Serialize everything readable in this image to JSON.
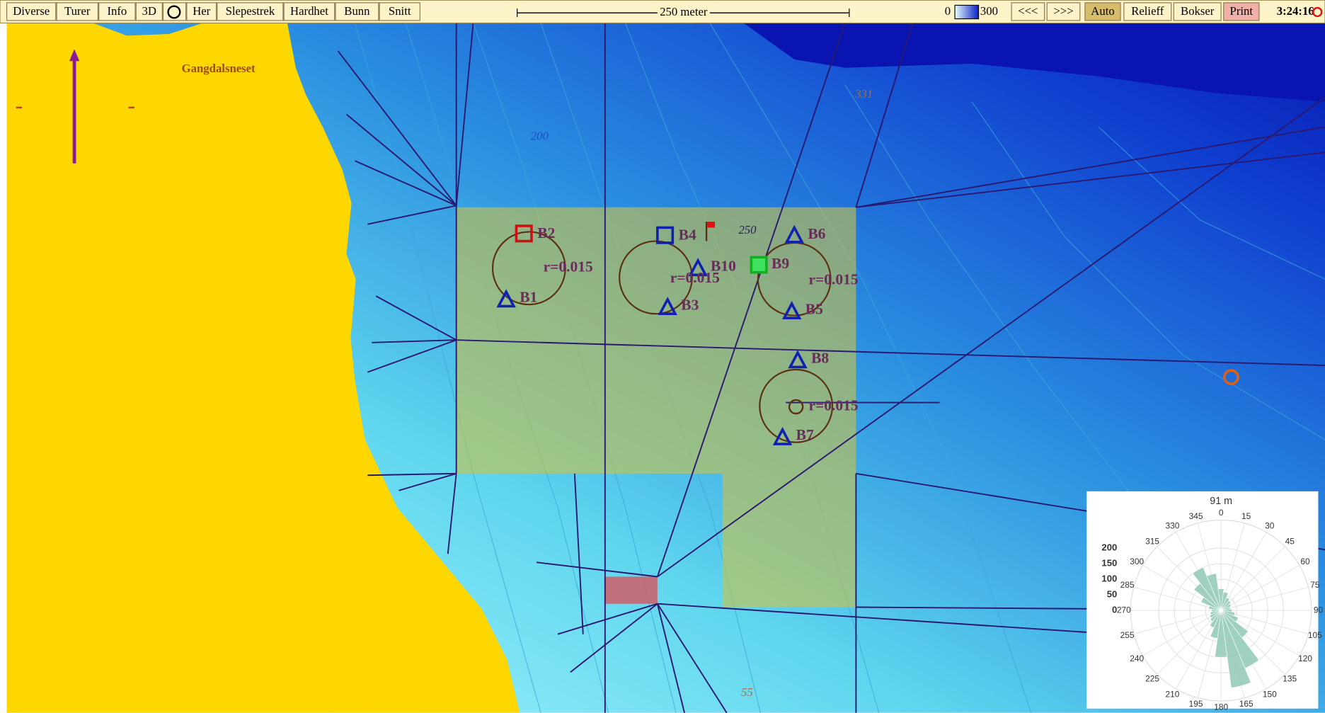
{
  "toolbar": {
    "buttons": [
      "Diverse",
      "Turer",
      "Info",
      "3D",
      "Her",
      "Slepestrek",
      "Hardhet",
      "Bunn",
      "Snitt"
    ],
    "scale_label": "250 meter",
    "depth_min": 0,
    "depth_max": 300,
    "nav": [
      "<<<",
      ">>>"
    ],
    "modes": [
      "Auto",
      "Relieff",
      "Bokser",
      "Print"
    ],
    "clock": "3:24:16"
  },
  "map": {
    "place_labels": [
      "Gangdalsneset"
    ],
    "depth_labels": [
      "200",
      "331",
      "250",
      "55"
    ],
    "stations": [
      "B1",
      "B2",
      "B3",
      "B4",
      "B5",
      "B6",
      "B7",
      "B8",
      "B9",
      "B10"
    ],
    "radius_labels": [
      "r=0.015",
      "r=0.015",
      "r=0.015",
      "r=0.015"
    ]
  },
  "chart_data": {
    "type": "polar-bar",
    "title": "91 m",
    "categories": [
      0,
      15,
      30,
      45,
      60,
      75,
      90,
      105,
      120,
      135,
      150,
      165,
      180,
      195,
      210,
      225,
      240,
      255,
      270,
      285,
      300,
      315,
      330,
      345
    ],
    "values": [
      70,
      60,
      45,
      40,
      35,
      30,
      35,
      45,
      60,
      110,
      200,
      250,
      150,
      90,
      60,
      45,
      40,
      35,
      30,
      40,
      70,
      110,
      150,
      120
    ],
    "rlim": [
      0,
      290
    ],
    "rticks": [
      0,
      50,
      100,
      150,
      200
    ],
    "color": "#8fc9b3"
  }
}
